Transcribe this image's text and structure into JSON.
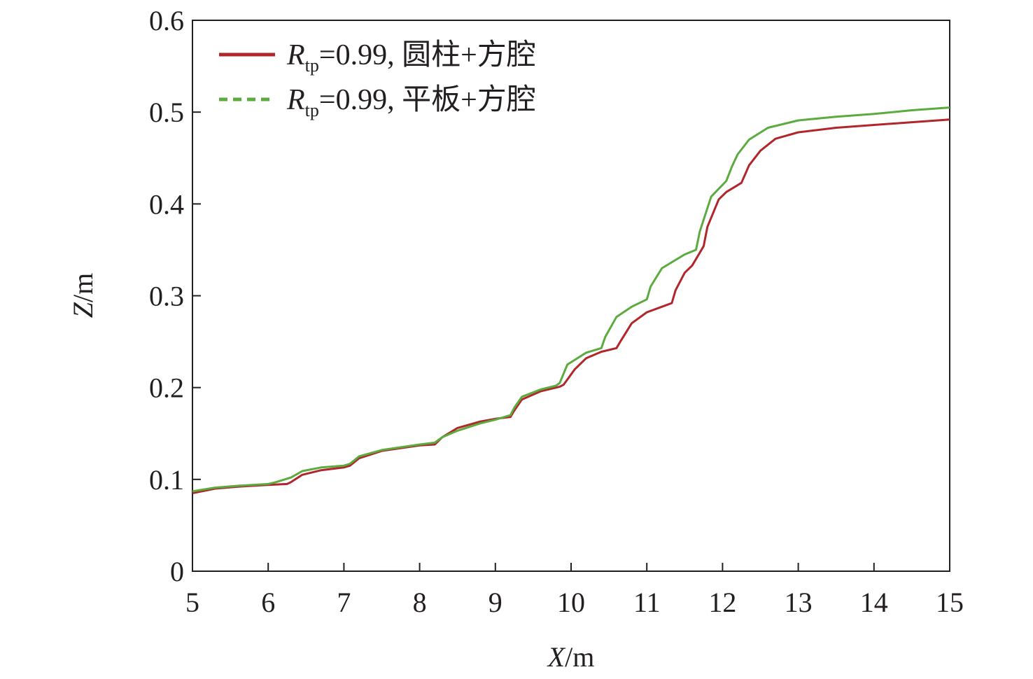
{
  "chart_data": {
    "type": "line",
    "xlabel": {
      "italic": "X",
      "unit": "/m"
    },
    "ylabel": {
      "italic": "Z",
      "unit": "/m"
    },
    "xlim": [
      5,
      15
    ],
    "ylim": [
      0,
      0.6
    ],
    "xticks": [
      "5",
      "6",
      "7",
      "8",
      "9",
      "10",
      "11",
      "12",
      "13",
      "14",
      "15"
    ],
    "yticks": [
      "0",
      "0.1",
      "0.2",
      "0.3",
      "0.4",
      "0.5",
      "0.6"
    ],
    "grid": false,
    "legend_position": "top-left",
    "series": [
      {
        "name": "R_tp=0.99, 圆柱+方腔",
        "legend": {
          "symbol": "R",
          "sub": "tp",
          "rest": "=0.99, 圆柱+方腔"
        },
        "color": "#b0262b",
        "style": "solid",
        "x": [
          5.0,
          5.3,
          5.6,
          6.0,
          6.25,
          6.3,
          6.45,
          6.7,
          7.0,
          7.08,
          7.2,
          7.5,
          8.0,
          8.2,
          8.3,
          8.5,
          8.8,
          9.0,
          9.2,
          9.25,
          9.35,
          9.6,
          9.85,
          9.9,
          10.05,
          10.2,
          10.4,
          10.6,
          10.65,
          10.8,
          11.0,
          11.2,
          11.33,
          11.38,
          11.5,
          11.6,
          11.75,
          11.8,
          11.95,
          12.05,
          12.25,
          12.35,
          12.5,
          12.7,
          13.0,
          13.5,
          14.0,
          14.5,
          15.0
        ],
        "y": [
          0.085,
          0.09,
          0.092,
          0.094,
          0.095,
          0.097,
          0.105,
          0.11,
          0.113,
          0.115,
          0.123,
          0.131,
          0.137,
          0.138,
          0.146,
          0.156,
          0.163,
          0.166,
          0.168,
          0.175,
          0.187,
          0.196,
          0.201,
          0.203,
          0.22,
          0.232,
          0.239,
          0.243,
          0.25,
          0.27,
          0.282,
          0.288,
          0.292,
          0.306,
          0.325,
          0.333,
          0.354,
          0.375,
          0.405,
          0.413,
          0.423,
          0.442,
          0.458,
          0.471,
          0.478,
          0.483,
          0.486,
          0.489,
          0.492
        ]
      },
      {
        "name": "R_tp=0.99, 平板+方腔",
        "legend": {
          "symbol": "R",
          "sub": "tp",
          "rest": "=0.99, 平板+方腔"
        },
        "color": "#5bab3e",
        "style": "dashed",
        "x": [
          5.0,
          5.3,
          5.6,
          6.0,
          6.1,
          6.3,
          6.45,
          6.7,
          7.0,
          7.08,
          7.2,
          7.5,
          8.0,
          8.2,
          8.3,
          8.5,
          8.8,
          9.0,
          9.2,
          9.25,
          9.35,
          9.6,
          9.8,
          9.85,
          9.95,
          10.2,
          10.4,
          10.45,
          10.6,
          10.8,
          11.0,
          11.05,
          11.2,
          11.5,
          11.65,
          11.7,
          11.85,
          12.05,
          12.12,
          12.2,
          12.35,
          12.6,
          13.0,
          13.5,
          14.0,
          14.5,
          15.0
        ],
        "y": [
          0.087,
          0.091,
          0.093,
          0.095,
          0.097,
          0.102,
          0.109,
          0.113,
          0.115,
          0.117,
          0.125,
          0.132,
          0.138,
          0.14,
          0.146,
          0.153,
          0.161,
          0.165,
          0.17,
          0.178,
          0.19,
          0.198,
          0.202,
          0.205,
          0.225,
          0.238,
          0.243,
          0.255,
          0.277,
          0.288,
          0.296,
          0.31,
          0.33,
          0.345,
          0.35,
          0.37,
          0.408,
          0.425,
          0.44,
          0.454,
          0.47,
          0.483,
          0.491,
          0.495,
          0.498,
          0.502,
          0.505
        ]
      }
    ]
  }
}
